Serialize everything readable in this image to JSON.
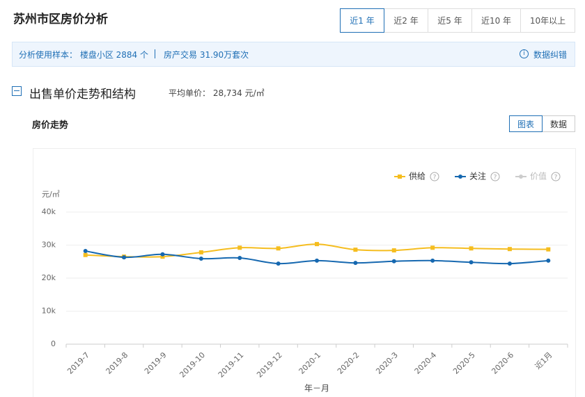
{
  "header": {
    "title": "苏州市区房价分析",
    "tabs": [
      "近1 年",
      "近2 年",
      "近5 年",
      "近10 年",
      "10年以上"
    ]
  },
  "info": {
    "sample": "分析使用样本： 楼盘小区 2884 个",
    "trades": "房产交易 31.90万套次",
    "report": "数据纠错"
  },
  "section": {
    "title": "出售单价走势和结构",
    "average": "平均单价： 28,734 元/㎡",
    "subtitle": "房价走势",
    "views": [
      "图表",
      "数据"
    ]
  },
  "chart_data": {
    "type": "line",
    "y_label": "元/㎡",
    "x_label": "年－月",
    "categories": [
      "2019-7",
      "2019-8",
      "2019-9",
      "2019-10",
      "2019-11",
      "2019-12",
      "2020-1",
      "2020-2",
      "2020-3",
      "2020-4",
      "2020-5",
      "2020-6",
      "近1月"
    ],
    "series": [
      {
        "name": "供给",
        "color": "#f5bd1f",
        "marker": "square",
        "values": [
          27000,
          26500,
          26500,
          27800,
          29200,
          29000,
          30300,
          28600,
          28400,
          29200,
          29000,
          28800,
          28700
        ]
      },
      {
        "name": "关注",
        "color": "#1668b0",
        "marker": "circle",
        "values": [
          28200,
          26300,
          27200,
          25900,
          26100,
          24400,
          25300,
          24600,
          25100,
          25300,
          24800,
          24400,
          25300
        ]
      },
      {
        "name": "价值",
        "color": "#cccccc",
        "marker": "circle",
        "values": [
          null,
          null,
          null,
          null,
          null,
          null,
          null,
          null,
          null,
          null,
          null,
          null,
          null
        ]
      }
    ],
    "ylim": [
      0,
      40000
    ],
    "yticks": [
      0,
      {
        "value": 10000,
        "label": "10k"
      },
      {
        "value": 20000,
        "label": "20k"
      },
      {
        "value": 30000,
        "label": "30k"
      },
      {
        "value": 40000,
        "label": "40k"
      }
    ],
    "grid": true,
    "legend": "top-right"
  }
}
